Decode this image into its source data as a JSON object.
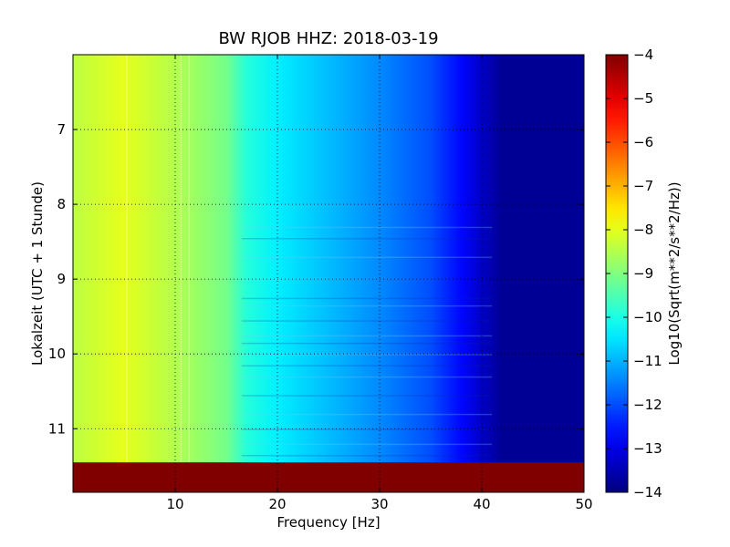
{
  "chart_data": {
    "type": "heatmap",
    "title": "BW RJOB HHZ: 2018-03-19",
    "xlabel": "Frequency [Hz]",
    "ylabel": "Lokalzeit (UTC + 1 Stunde)",
    "colorbar_label": "Log10(Sqrt(m**2/s**2/Hz))",
    "colormap": "jet",
    "xlim": [
      0,
      50
    ],
    "ylim": [
      11.85,
      6.0
    ],
    "x_ticks": [
      10,
      20,
      30,
      40,
      50
    ],
    "x_tick_labels": [
      "10",
      "20",
      "30",
      "40",
      "50"
    ],
    "y_ticks": [
      7,
      8,
      9,
      10,
      11
    ],
    "y_tick_labels": [
      "7",
      "8",
      "9",
      "10",
      "11"
    ],
    "color_range": [
      -14,
      -4
    ],
    "colorbar_ticks": [
      -4,
      -5,
      -6,
      -7,
      -8,
      -9,
      -10,
      -11,
      -12,
      -13,
      -14
    ],
    "colorbar_tick_labels": [
      "−4",
      "−5",
      "−6",
      "−7",
      "−8",
      "−9",
      "−10",
      "−11",
      "−12",
      "−13",
      "−14"
    ],
    "grid": true,
    "spectrum_profile": {
      "frequency_hz": [
        0,
        5,
        10,
        15,
        17,
        20,
        25,
        30,
        35,
        38,
        40,
        42,
        50
      ],
      "log10_amplitude": [
        -8.4,
        -8.0,
        -8.5,
        -9.1,
        -9.9,
        -10.4,
        -10.9,
        -11.4,
        -12.0,
        -12.7,
        -13.3,
        -13.8,
        -13.8
      ]
    },
    "no_data_band": {
      "time_start": 11.45,
      "time_end": 11.85,
      "value": -4
    }
  }
}
